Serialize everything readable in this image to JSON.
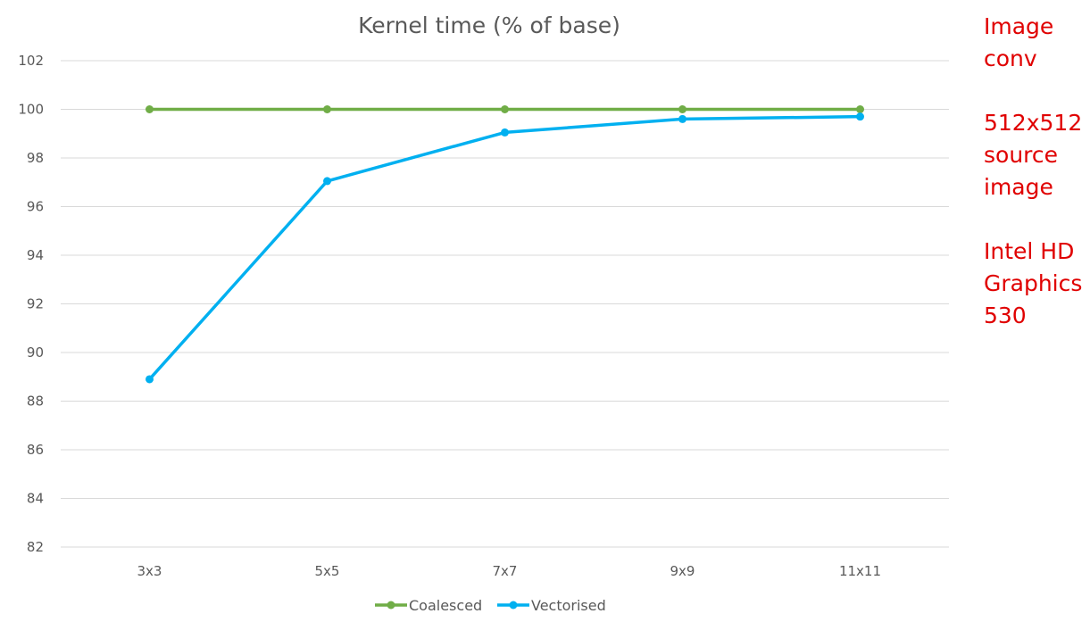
{
  "chart_data": {
    "type": "line",
    "title": "Kernel time (% of base)",
    "xlabel": "",
    "ylabel": "",
    "categories": [
      "3x3",
      "5x5",
      "7x7",
      "9x9",
      "11x11"
    ],
    "ylim": [
      82,
      102
    ],
    "yticks": [
      82,
      84,
      86,
      88,
      90,
      92,
      94,
      96,
      98,
      100,
      102
    ],
    "grid": true,
    "legend_position": "bottom",
    "series": [
      {
        "name": "Coalesced",
        "color": "#70AD47",
        "values": [
          100,
          100,
          100,
          100,
          100
        ]
      },
      {
        "name": "Vectorised",
        "color": "#00B0F0",
        "values": [
          88.9,
          97.05,
          99.05,
          99.6,
          99.7
        ]
      }
    ]
  },
  "notes": [
    {
      "lines": [
        "Image",
        "conv"
      ]
    },
    {
      "lines": [
        "512x512",
        "source",
        "image"
      ]
    },
    {
      "lines": [
        "Intel HD",
        "Graphics",
        "530"
      ]
    }
  ]
}
